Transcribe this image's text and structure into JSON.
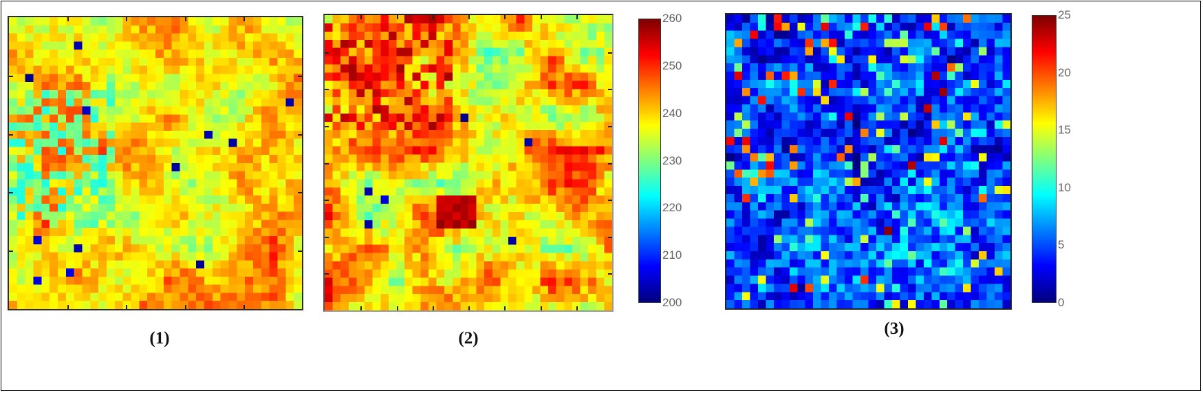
{
  "figure": {
    "captions": [
      "(1)",
      "(2)",
      "(3)"
    ]
  },
  "colorbars": [
    {
      "id": "cbar-2",
      "min": 200,
      "max": 260,
      "ticks": [
        "260",
        "250",
        "240",
        "230",
        "220",
        "210",
        "200"
      ]
    },
    {
      "id": "cbar-3",
      "min": 0,
      "max": 25,
      "ticks": [
        "25",
        "20",
        "15",
        "10",
        "5",
        "0"
      ]
    }
  ],
  "chart_data": [
    {
      "type": "heatmap",
      "title": "(1)",
      "grid": [
        36,
        36
      ],
      "colormap": "jet",
      "value_range": [
        200,
        260
      ],
      "colorbar": false,
      "description": "Mostly yellow/orange field (~232-252) with cyan patches (~222-228) on the left half, a few isolated blue cells (~208), and red clusters (~252-255) near the upper-left and lower-left",
      "xticks": 4,
      "yticks": 4,
      "seed": 11,
      "base": 240,
      "spread": 9
    },
    {
      "type": "heatmap",
      "title": "(2)",
      "grid": [
        36,
        36
      ],
      "colormap": "jet",
      "value_range": [
        200,
        260
      ],
      "colorbar": true,
      "colorbar_ticks": [
        200,
        210,
        220,
        230,
        240,
        250,
        260
      ],
      "description": "Yellow/green field with red-orange clusters (~250-258) upper-left and a dark-red hotspot (~258) in lower-center; several deep-blue cells (~200-205) near top-center and right edge",
      "xticks": 7,
      "yticks": 7,
      "seed": 29,
      "base": 240,
      "spread": 11
    },
    {
      "type": "heatmap",
      "title": "(3)",
      "grid": [
        36,
        36
      ],
      "colormap": "jet",
      "value_range": [
        0,
        25
      ],
      "colorbar": true,
      "colorbar_ticks": [
        0,
        5,
        10,
        15,
        20,
        25
      ],
      "description": "Predominantly blue/dark-blue field (~0-6) with scattered cyan (~8-11), yellow (~14-16), and sparse red/dark-red cells (~20-25), denser warm cells in left and upper-center",
      "xticks": 0,
      "yticks": 0,
      "seed": 53,
      "base": 5,
      "spread": 6
    }
  ]
}
